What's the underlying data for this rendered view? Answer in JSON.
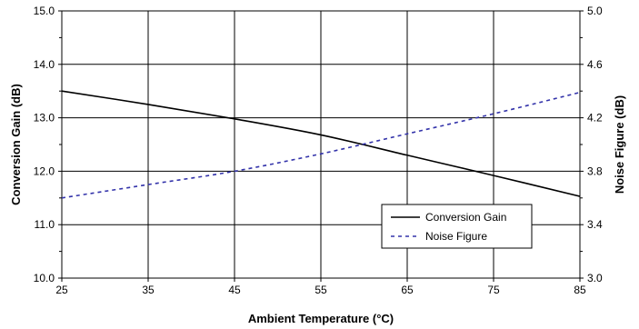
{
  "chart_data": {
    "type": "line",
    "xlabel": "Ambient Temperature (°C)",
    "ylabel_left": "Conversion Gain (dB)",
    "ylabel_right": "Noise Figure (dB)",
    "xlim": [
      25,
      85
    ],
    "xticks": [
      25,
      35,
      45,
      55,
      65,
      75,
      85
    ],
    "ylim_left": [
      10.0,
      15.0
    ],
    "yticks_left": [
      "10.0",
      "11.0",
      "12.0",
      "13.0",
      "14.0",
      "15.0"
    ],
    "ylim_right": [
      3.0,
      5.0
    ],
    "yticks_right": [
      "3.0",
      "3.4",
      "3.8",
      "4.2",
      "4.6",
      "5.0"
    ],
    "grid": true,
    "legend_position": "lower-right",
    "series": [
      {
        "name": "Conversion Gain",
        "axis": "left",
        "color": "#000000",
        "style": "solid",
        "x": [
          25,
          35,
          45,
          55,
          65,
          75,
          85
        ],
        "y": [
          13.5,
          13.25,
          12.98,
          12.68,
          12.3,
          11.92,
          11.53
        ]
      },
      {
        "name": "Noise Figure",
        "axis": "right",
        "color": "#3333aa",
        "style": "dashed",
        "x": [
          25,
          35,
          45,
          55,
          65,
          75,
          85
        ],
        "y": [
          3.6,
          3.7,
          3.8,
          3.93,
          4.08,
          4.23,
          4.39
        ]
      }
    ]
  }
}
